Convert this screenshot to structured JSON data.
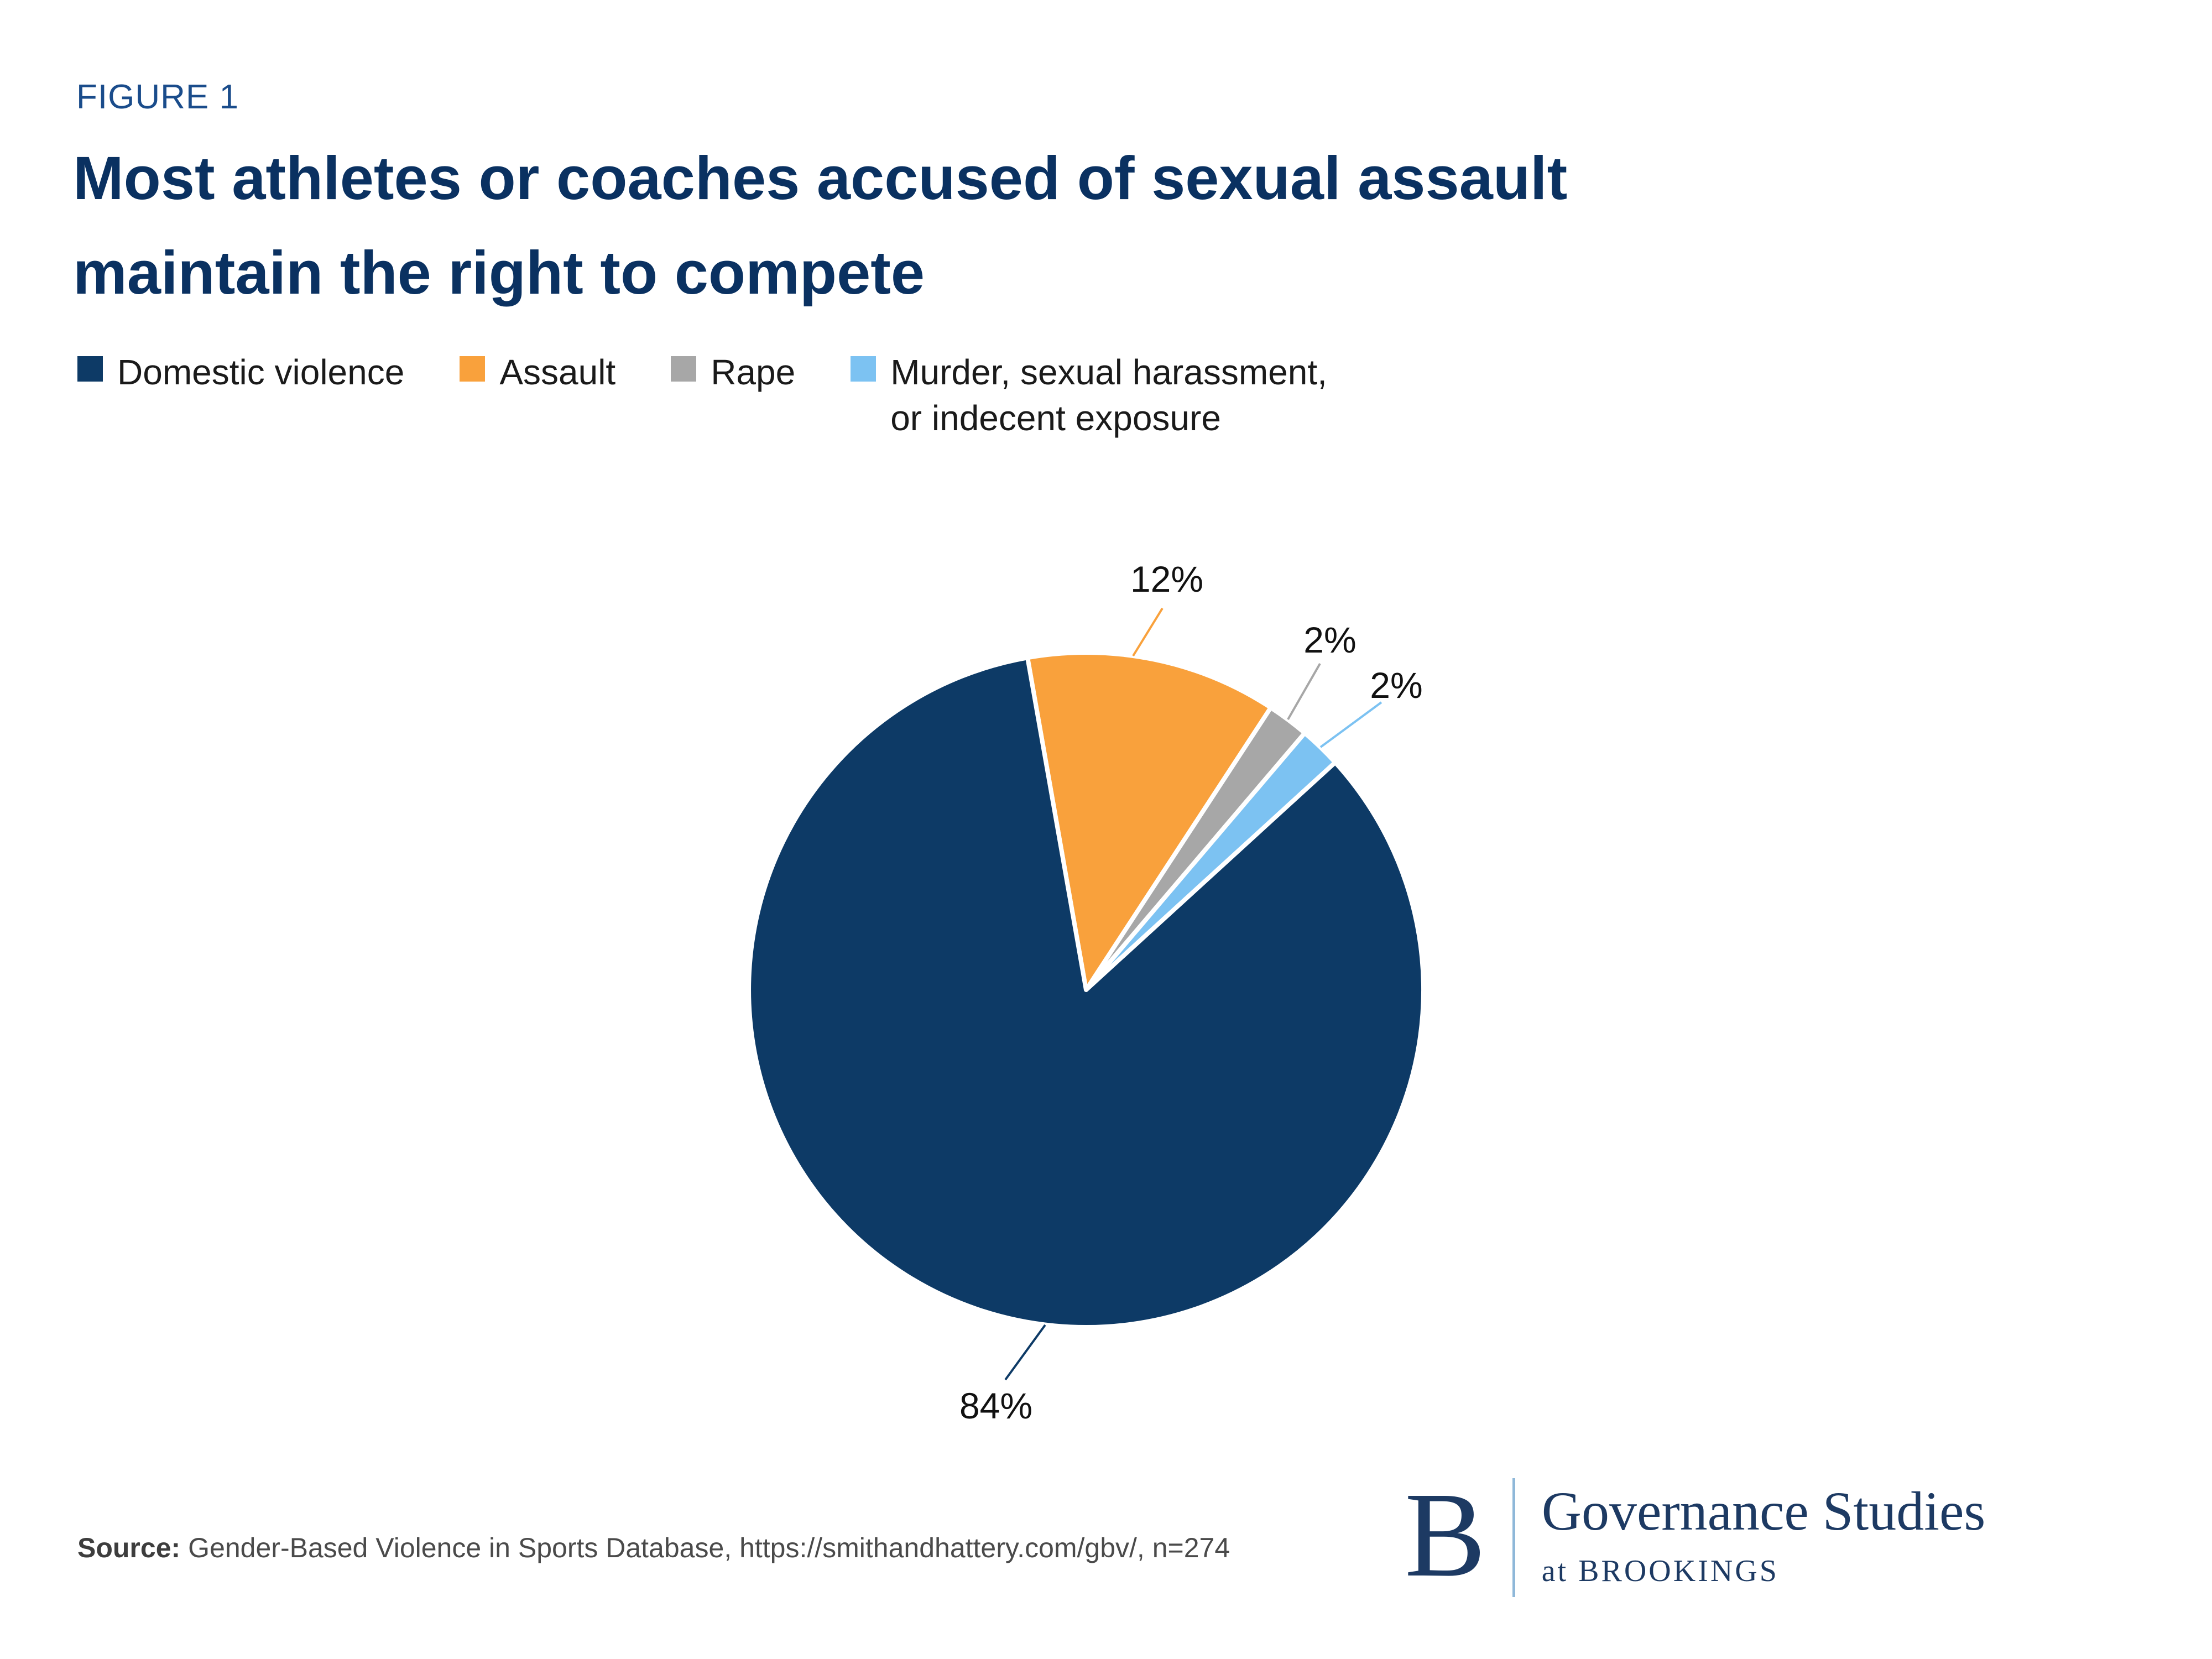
{
  "figure_label": "FIGURE 1",
  "title": "Most athletes or coaches accused of sexual assault\nmaintain the right to compete",
  "legend": {
    "items": [
      {
        "label": "Domestic violence",
        "color": "#0d3a66"
      },
      {
        "label": "Assault",
        "color": "#f9a13c"
      },
      {
        "label": "Rape",
        "color": "#a7a7a7"
      },
      {
        "label": "Murder, sexual harassment,\nor indecent exposure",
        "color": "#7cc2f2"
      }
    ]
  },
  "chart_data": {
    "type": "pie",
    "title": "Most athletes or coaches accused of sexual assault maintain the right to compete",
    "categories": [
      "Domestic violence",
      "Assault",
      "Rape",
      "Murder, sexual harassment, or indecent exposure"
    ],
    "values": [
      84,
      12,
      2,
      2
    ],
    "labels": [
      "84%",
      "12%",
      "2%",
      "2%"
    ],
    "colors": [
      "#0d3a66",
      "#f9a13c",
      "#a7a7a7",
      "#7cc2f2"
    ],
    "unit": "%",
    "n": "274",
    "start_angle_deg": -10,
    "draw_order": [
      1,
      2,
      3,
      0
    ],
    "legend_position": "top",
    "slice_gap_stroke": "#ffffff"
  },
  "source": {
    "prefix": "Source:",
    "text": "Gender-Based Violence in Sports Database, https://smithandhattery.com/gbv/, n=274"
  },
  "logo": {
    "letter": "B",
    "name": "Governance Studies",
    "sub": "at BROOKINGS"
  }
}
